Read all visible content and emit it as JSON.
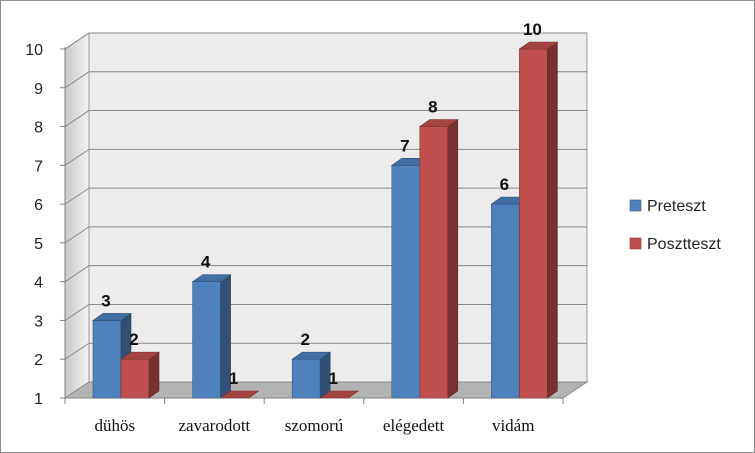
{
  "chart_data": {
    "type": "bar",
    "categories": [
      "dühös",
      "zavarodott",
      "szomorú",
      "elégedett",
      "vidám"
    ],
    "series": [
      {
        "name": "Preteszt",
        "values": [
          3,
          4,
          2,
          7,
          6
        ],
        "color": "#4f81bd"
      },
      {
        "name": "Posztteszt",
        "values": [
          2,
          1,
          1,
          8,
          10
        ],
        "color": "#c0504d"
      }
    ],
    "ylim": [
      1,
      10
    ],
    "yticks": [
      "1",
      "2",
      "3",
      "4",
      "5",
      "6",
      "7",
      "8",
      "9",
      "10"
    ],
    "grid": true,
    "legend": "right",
    "style": "3d-column"
  }
}
